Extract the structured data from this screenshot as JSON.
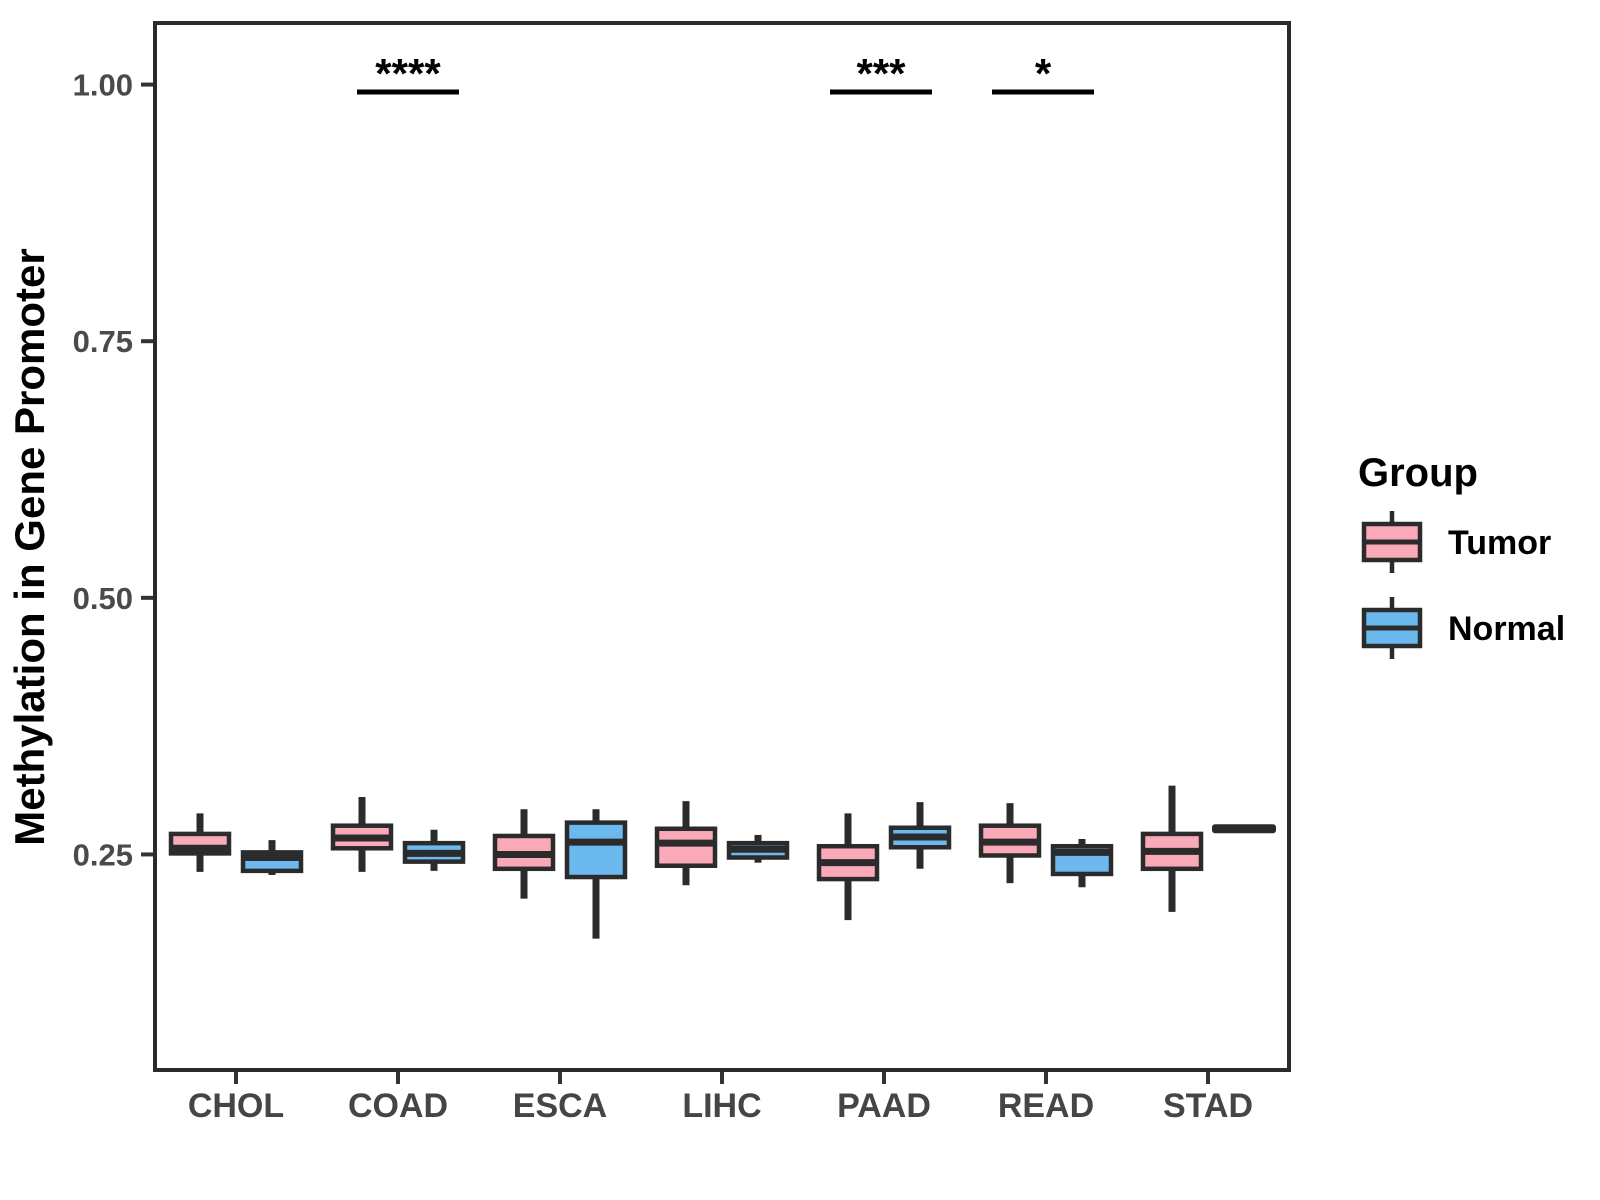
{
  "figure": {
    "background": "#ffffff"
  },
  "colors": {
    "box_stroke": "#2b2b2b",
    "axis_text": "#4a4a4a",
    "title_text": "#000000",
    "significance_text": "#000000",
    "tumor_fill": "#f9a9b8",
    "normal_fill": "#6cb9f0"
  },
  "chart_data": {
    "type": "boxplot",
    "title": "",
    "xlabel": "",
    "ylabel": "Methylation in Gene Promoter",
    "categories": [
      "CHOL",
      "COAD",
      "ESCA",
      "LIHC",
      "PAAD",
      "READ",
      "STAD"
    ],
    "ylim": [
      0.04,
      1.06
    ],
    "yticks": [
      0.25,
      0.5,
      0.75,
      1.0
    ],
    "ytick_labels": [
      "0.25",
      "0.50",
      "0.75",
      "1.00"
    ],
    "grid": false,
    "legend_position": "right",
    "legend_title": "Group",
    "series": [
      {
        "name": "Tumor",
        "color": "#f9a9b8",
        "boxes": [
          {
            "low": 0.233,
            "q1": 0.251,
            "median": 0.256,
            "q3": 0.27,
            "high": 0.29
          },
          {
            "low": 0.233,
            "q1": 0.256,
            "median": 0.266,
            "q3": 0.278,
            "high": 0.306
          },
          {
            "low": 0.207,
            "q1": 0.236,
            "median": 0.25,
            "q3": 0.268,
            "high": 0.294
          },
          {
            "low": 0.22,
            "q1": 0.239,
            "median": 0.261,
            "q3": 0.275,
            "high": 0.302
          },
          {
            "low": 0.186,
            "q1": 0.226,
            "median": 0.242,
            "q3": 0.258,
            "high": 0.29
          },
          {
            "low": 0.222,
            "q1": 0.249,
            "median": 0.262,
            "q3": 0.278,
            "high": 0.3
          },
          {
            "low": 0.194,
            "q1": 0.236,
            "median": 0.253,
            "q3": 0.27,
            "high": 0.317
          }
        ]
      },
      {
        "name": "Normal",
        "color": "#6cb9f0",
        "boxes": [
          {
            "low": 0.23,
            "q1": 0.234,
            "median": 0.247,
            "q3": 0.252,
            "high": 0.264
          },
          {
            "low": 0.234,
            "q1": 0.243,
            "median": 0.251,
            "q3": 0.261,
            "high": 0.274
          },
          {
            "low": 0.168,
            "q1": 0.228,
            "median": 0.262,
            "q3": 0.281,
            "high": 0.294
          },
          {
            "low": 0.242,
            "q1": 0.247,
            "median": 0.255,
            "q3": 0.261,
            "high": 0.269
          },
          {
            "low": 0.236,
            "q1": 0.257,
            "median": 0.267,
            "q3": 0.276,
            "high": 0.301
          },
          {
            "low": 0.218,
            "q1": 0.231,
            "median": 0.252,
            "q3": 0.258,
            "high": 0.265
          },
          {
            "low": 0.275,
            "q1": 0.275,
            "median": 0.275,
            "q3": 0.275,
            "high": 0.275
          }
        ]
      }
    ],
    "significance": [
      {
        "category": "COAD",
        "label": "****"
      },
      {
        "category": "PAAD",
        "label": "***"
      },
      {
        "category": "READ",
        "label": "*"
      }
    ]
  }
}
